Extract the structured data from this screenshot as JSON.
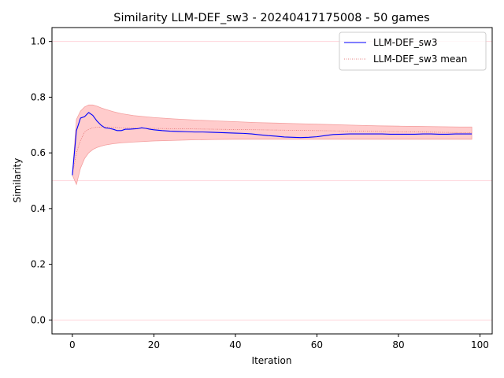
{
  "chart_data": {
    "type": "line",
    "title": "Similarity LLM-DEF_sw3 - 20240417175008 - 50 games",
    "xlabel": "Iteration",
    "ylabel": "Similarity",
    "xlim": [
      -5,
      103
    ],
    "ylim": [
      -0.05,
      1.05
    ],
    "x_ticks": [
      0,
      20,
      40,
      60,
      80,
      100
    ],
    "y_ticks": [
      0.0,
      0.2,
      0.4,
      0.6,
      0.8,
      1.0
    ],
    "x_tick_labels": [
      "0",
      "20",
      "40",
      "60",
      "80",
      "100"
    ],
    "y_tick_labels": [
      "0.0",
      "0.2",
      "0.4",
      "0.6",
      "0.8",
      "1.0"
    ],
    "grid": false,
    "legend_position": "top-right",
    "reference_lines": [
      0.0,
      0.5,
      1.0
    ],
    "colors": {
      "series": "#0000ff",
      "mean": "#e06060",
      "band_fill": "#ffcccc",
      "band_edge": "#f4a0a0",
      "reference": "#ffd6dc"
    },
    "series": [
      {
        "name": "LLM-DEF_sw3",
        "x": [
          0,
          1,
          2,
          3,
          4,
          5,
          6,
          7,
          8,
          9,
          10,
          11,
          12,
          13,
          14,
          15,
          16,
          17,
          18,
          19,
          20,
          22,
          24,
          26,
          28,
          30,
          32,
          34,
          36,
          38,
          40,
          42,
          44,
          46,
          48,
          50,
          52,
          54,
          56,
          58,
          60,
          62,
          64,
          66,
          68,
          70,
          72,
          74,
          76,
          78,
          80,
          82,
          84,
          86,
          88,
          90,
          92,
          94,
          96,
          98
        ],
        "values": [
          0.52,
          0.68,
          0.725,
          0.73,
          0.745,
          0.735,
          0.715,
          0.7,
          0.69,
          0.688,
          0.685,
          0.68,
          0.68,
          0.685,
          0.685,
          0.686,
          0.687,
          0.69,
          0.688,
          0.685,
          0.683,
          0.68,
          0.678,
          0.677,
          0.676,
          0.675,
          0.675,
          0.674,
          0.673,
          0.672,
          0.671,
          0.67,
          0.668,
          0.665,
          0.662,
          0.66,
          0.657,
          0.656,
          0.655,
          0.656,
          0.658,
          0.662,
          0.666,
          0.667,
          0.668,
          0.668,
          0.668,
          0.668,
          0.668,
          0.667,
          0.667,
          0.667,
          0.667,
          0.668,
          0.668,
          0.667,
          0.667,
          0.668,
          0.668,
          0.668
        ]
      },
      {
        "name": "LLM-DEF_sw3 mean",
        "x": [
          0,
          1,
          2,
          3,
          4,
          5,
          6,
          7,
          8,
          10,
          12,
          15,
          20,
          25,
          30,
          35,
          40,
          45,
          50,
          55,
          60,
          65,
          70,
          75,
          80,
          85,
          90,
          95,
          98
        ],
        "values": [
          0.52,
          0.6,
          0.645,
          0.675,
          0.685,
          0.69,
          0.692,
          0.693,
          0.693,
          0.692,
          0.69,
          0.689,
          0.688,
          0.687,
          0.686,
          0.685,
          0.684,
          0.683,
          0.682,
          0.681,
          0.68,
          0.679,
          0.678,
          0.677,
          0.676,
          0.675,
          0.674,
          0.673,
          0.673
        ],
        "band_upper": [
          0.52,
          0.72,
          0.75,
          0.765,
          0.772,
          0.772,
          0.768,
          0.762,
          0.757,
          0.748,
          0.741,
          0.734,
          0.727,
          0.722,
          0.718,
          0.715,
          0.712,
          0.709,
          0.707,
          0.705,
          0.703,
          0.701,
          0.699,
          0.697,
          0.696,
          0.695,
          0.694,
          0.693,
          0.693
        ],
        "band_lower": [
          0.52,
          0.487,
          0.545,
          0.58,
          0.6,
          0.612,
          0.619,
          0.624,
          0.628,
          0.633,
          0.636,
          0.639,
          0.643,
          0.645,
          0.647,
          0.648,
          0.649,
          0.649,
          0.649,
          0.649,
          0.649,
          0.649,
          0.649,
          0.649,
          0.649,
          0.649,
          0.649,
          0.649,
          0.649
        ]
      }
    ]
  }
}
